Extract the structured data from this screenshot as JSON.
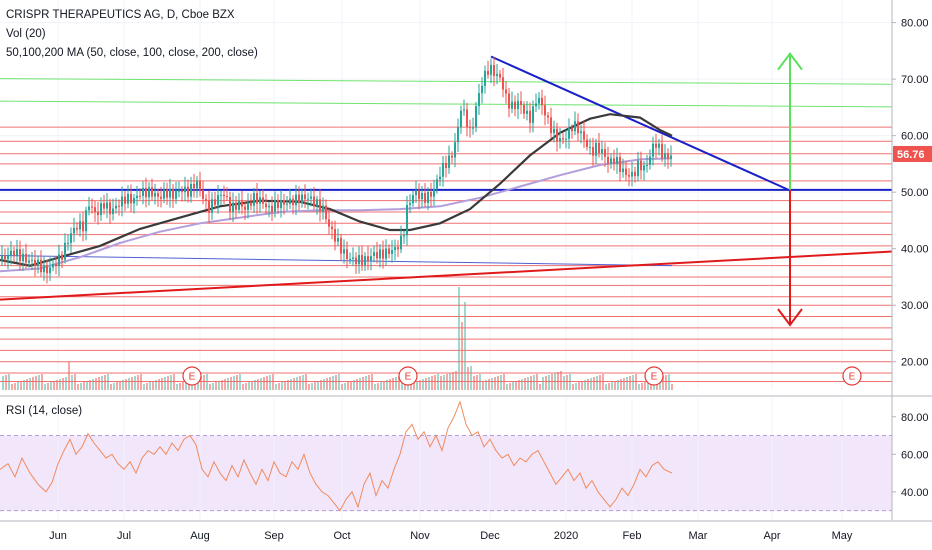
{
  "header": {
    "title": "CRISPR THERAPEUTICS AG, D, Cboe BZX",
    "volume_label": "Vol (20)",
    "ma_label": "50,100,200 MA (50, close, 100, close, 200, close)",
    "rsi_label": "RSI (14, close)"
  },
  "last_price": "56.76",
  "colors": {
    "up": "#26a69a",
    "down": "#ef5350",
    "ma_short": "#3a3a3a",
    "ma_long": "#b39ddb",
    "trend_blue": "#1a20c8",
    "support_red": "#e0191b",
    "horizontal_red": "#f07070",
    "horizontal_green": "#6fe36f",
    "arrow_green": "#5ae05a",
    "arrow_red": "#e0191b",
    "rsi_line": "#f08a5d",
    "rsi_band": "#f2e6fb",
    "price_tag": "#ef5350"
  },
  "chart_data": [
    {
      "type": "candlestick",
      "x_labels": [
        "Jun",
        "Jul",
        "Aug",
        "Sep",
        "Oct",
        "Nov",
        "Dec",
        "2020",
        "Feb",
        "Mar",
        "Apr",
        "May"
      ],
      "y_ticks": [
        "80.00",
        "70.00",
        "60.00",
        "50.00",
        "40.00",
        "30.00",
        "20.00"
      ],
      "ylim": [
        15,
        84
      ],
      "close_path": [
        [
          0,
          38
        ],
        [
          12,
          39.5
        ],
        [
          25,
          38
        ],
        [
          35,
          37.5
        ],
        [
          45,
          36
        ],
        [
          52,
          37
        ],
        [
          60,
          38.5
        ],
        [
          68,
          42
        ],
        [
          75,
          44
        ],
        [
          82,
          44
        ],
        [
          88,
          48
        ],
        [
          95,
          46
        ],
        [
          103,
          48
        ],
        [
          110,
          46.5
        ],
        [
          118,
          48
        ],
        [
          125,
          49
        ],
        [
          132,
          48.5
        ],
        [
          140,
          50
        ],
        [
          150,
          50
        ],
        [
          158,
          49
        ],
        [
          165,
          50
        ],
        [
          172,
          49.5
        ],
        [
          180,
          50.5
        ],
        [
          188,
          50
        ],
        [
          195,
          52
        ],
        [
          200,
          50
        ],
        [
          207,
          47
        ],
        [
          214,
          48.5
        ],
        [
          222,
          50
        ],
        [
          230,
          47
        ],
        [
          238,
          48
        ],
        [
          245,
          47
        ],
        [
          252,
          49
        ],
        [
          260,
          48.5
        ],
        [
          268,
          47
        ],
        [
          276,
          48
        ],
        [
          284,
          48
        ],
        [
          292,
          48.5
        ],
        [
          300,
          49
        ],
        [
          308,
          49
        ],
        [
          315,
          48
        ],
        [
          322,
          47
        ],
        [
          328,
          44
        ],
        [
          334,
          42
        ],
        [
          340,
          40
        ],
        [
          346,
          38.5
        ],
        [
          352,
          38
        ],
        [
          358,
          38
        ],
        [
          365,
          38
        ],
        [
          372,
          39
        ],
        [
          380,
          39
        ],
        [
          388,
          39.5
        ],
        [
          395,
          40
        ],
        [
          402,
          42
        ],
        [
          406,
          47
        ],
        [
          410,
          49
        ],
        [
          415,
          50
        ],
        [
          420,
          49
        ],
        [
          425,
          49
        ],
        [
          432,
          50
        ],
        [
          438,
          53
        ],
        [
          444,
          55
        ],
        [
          450,
          56
        ],
        [
          456,
          60
        ],
        [
          460,
          65
        ],
        [
          465,
          63
        ],
        [
          470,
          60
        ],
        [
          476,
          66
        ],
        [
          482,
          70
        ],
        [
          488,
          72
        ],
        [
          494,
          71
        ],
        [
          500,
          70
        ],
        [
          506,
          66
        ],
        [
          512,
          65
        ],
        [
          518,
          66
        ],
        [
          524,
          64
        ],
        [
          530,
          63
        ],
        [
          536,
          67
        ],
        [
          542,
          65
        ],
        [
          548,
          62
        ],
        [
          554,
          60
        ],
        [
          560,
          59
        ],
        [
          566,
          60
        ],
        [
          572,
          62
        ],
        [
          578,
          61
        ],
        [
          584,
          59
        ],
        [
          590,
          57
        ],
        [
          596,
          58
        ],
        [
          602,
          57
        ],
        [
          608,
          55
        ],
        [
          614,
          56
        ],
        [
          620,
          54
        ],
        [
          626,
          53
        ],
        [
          632,
          53
        ],
        [
          638,
          55
        ],
        [
          644,
          54
        ],
        [
          648,
          56
        ],
        [
          654,
          59
        ],
        [
          660,
          57
        ],
        [
          666,
          56
        ],
        [
          672,
          57
        ]
      ],
      "ma_short": [
        [
          0,
          38
        ],
        [
          30,
          37
        ],
        [
          60,
          38.5
        ],
        [
          100,
          40.5
        ],
        [
          140,
          43.5
        ],
        [
          180,
          45.5
        ],
        [
          220,
          47.5
        ],
        [
          260,
          48.5
        ],
        [
          300,
          48.3
        ],
        [
          330,
          47
        ],
        [
          360,
          44.8
        ],
        [
          390,
          43.3
        ],
        [
          410,
          43.3
        ],
        [
          440,
          44.5
        ],
        [
          470,
          47
        ],
        [
          500,
          51.5
        ],
        [
          530,
          56.5
        ],
        [
          560,
          60.5
        ],
        [
          590,
          63
        ],
        [
          610,
          63.8
        ],
        [
          640,
          63.2
        ],
        [
          660,
          61
        ],
        [
          672,
          60
        ]
      ],
      "ma_long": [
        [
          0,
          36
        ],
        [
          40,
          36.5
        ],
        [
          80,
          38.5
        ],
        [
          120,
          41
        ],
        [
          160,
          43
        ],
        [
          200,
          44.5
        ],
        [
          240,
          45.5
        ],
        [
          280,
          46.5
        ],
        [
          320,
          46.8
        ],
        [
          360,
          46.8
        ],
        [
          400,
          47
        ],
        [
          440,
          47.5
        ],
        [
          480,
          49
        ],
        [
          520,
          51
        ],
        [
          560,
          53
        ],
        [
          600,
          54.8
        ],
        [
          640,
          55.8
        ],
        [
          672,
          56
        ]
      ],
      "trendline_resistance": [
        [
          491,
          74
        ],
        [
          790,
          50.3
        ]
      ],
      "support_line": [
        [
          0,
          50.4
        ],
        [
          892,
          50.4
        ]
      ],
      "ascending_support": [
        [
          0,
          31
        ],
        [
          892,
          39.5
        ]
      ],
      "faint_trend": [
        [
          0,
          38.8
        ],
        [
          672,
          37
        ]
      ],
      "green_levels": [
        69.5,
        65.5,
        74.5
      ],
      "red_levels": [
        61.5,
        59,
        56.8,
        55,
        52,
        48.5,
        46.5,
        44.5,
        42.5,
        40.5,
        37,
        35,
        33.5,
        31.5,
        30,
        28,
        26,
        24,
        22,
        20,
        18,
        16.5
      ],
      "target_up": 74.5,
      "target_down": 26.5,
      "earnings_markers": [
        "E",
        "E",
        "E",
        "E"
      ]
    },
    {
      "type": "line",
      "name": "RSI (14, close)",
      "y_ticks": [
        "80.00",
        "60.00",
        "40.00"
      ],
      "ylim": [
        25,
        90
      ],
      "band": [
        30,
        70
      ],
      "values": [
        [
          0,
          52
        ],
        [
          8,
          55
        ],
        [
          15,
          48
        ],
        [
          22,
          58
        ],
        [
          30,
          50
        ],
        [
          38,
          44
        ],
        [
          46,
          40
        ],
        [
          52,
          45
        ],
        [
          58,
          55
        ],
        [
          64,
          62
        ],
        [
          70,
          68
        ],
        [
          76,
          60
        ],
        [
          82,
          64
        ],
        [
          88,
          71
        ],
        [
          94,
          66
        ],
        [
          100,
          62
        ],
        [
          106,
          58
        ],
        [
          112,
          60
        ],
        [
          118,
          55
        ],
        [
          124,
          52
        ],
        [
          130,
          56
        ],
        [
          136,
          50
        ],
        [
          142,
          58
        ],
        [
          148,
          62
        ],
        [
          154,
          60
        ],
        [
          160,
          64
        ],
        [
          166,
          60
        ],
        [
          172,
          66
        ],
        [
          178,
          62
        ],
        [
          184,
          68
        ],
        [
          190,
          70
        ],
        [
          196,
          65
        ],
        [
          202,
          52
        ],
        [
          208,
          48
        ],
        [
          214,
          56
        ],
        [
          220,
          50
        ],
        [
          226,
          46
        ],
        [
          232,
          54
        ],
        [
          238,
          48
        ],
        [
          244,
          57
        ],
        [
          250,
          50
        ],
        [
          256,
          44
        ],
        [
          262,
          52
        ],
        [
          268,
          46
        ],
        [
          274,
          56
        ],
        [
          280,
          50
        ],
        [
          286,
          48
        ],
        [
          292,
          56
        ],
        [
          298,
          52
        ],
        [
          304,
          60
        ],
        [
          310,
          50
        ],
        [
          316,
          44
        ],
        [
          322,
          40
        ],
        [
          328,
          38
        ],
        [
          334,
          34
        ],
        [
          340,
          30
        ],
        [
          346,
          36
        ],
        [
          352,
          40
        ],
        [
          358,
          32
        ],
        [
          364,
          44
        ],
        [
          370,
          50
        ],
        [
          376,
          38
        ],
        [
          382,
          46
        ],
        [
          388,
          42
        ],
        [
          394,
          52
        ],
        [
          400,
          60
        ],
        [
          406,
          72
        ],
        [
          412,
          76
        ],
        [
          418,
          68
        ],
        [
          424,
          72
        ],
        [
          430,
          64
        ],
        [
          436,
          70
        ],
        [
          442,
          62
        ],
        [
          448,
          74
        ],
        [
          454,
          80
        ],
        [
          460,
          88
        ],
        [
          466,
          76
        ],
        [
          472,
          70
        ],
        [
          478,
          72
        ],
        [
          484,
          64
        ],
        [
          490,
          68
        ],
        [
          496,
          62
        ],
        [
          502,
          58
        ],
        [
          508,
          60
        ],
        [
          514,
          54
        ],
        [
          520,
          58
        ],
        [
          526,
          56
        ],
        [
          532,
          60
        ],
        [
          538,
          62
        ],
        [
          544,
          56
        ],
        [
          550,
          50
        ],
        [
          556,
          44
        ],
        [
          562,
          48
        ],
        [
          568,
          52
        ],
        [
          574,
          46
        ],
        [
          580,
          50
        ],
        [
          586,
          42
        ],
        [
          592,
          46
        ],
        [
          598,
          40
        ],
        [
          604,
          36
        ],
        [
          610,
          32
        ],
        [
          616,
          36
        ],
        [
          622,
          42
        ],
        [
          628,
          38
        ],
        [
          634,
          44
        ],
        [
          640,
          52
        ],
        [
          646,
          48
        ],
        [
          652,
          54
        ],
        [
          658,
          56
        ],
        [
          664,
          52
        ],
        [
          672,
          50
        ]
      ]
    }
  ]
}
